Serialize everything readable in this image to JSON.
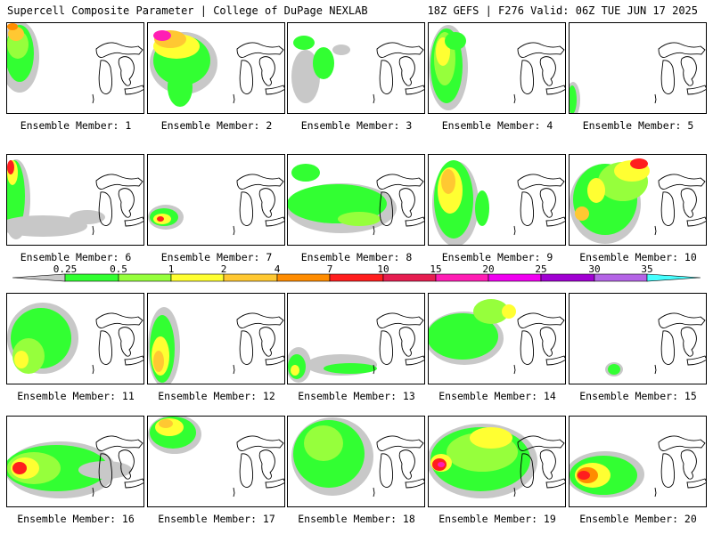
{
  "header": {
    "title": "Supercell Composite Parameter | College of DuPage NEXLAB",
    "run_info": "18Z GEFS | F276 Valid: 06Z TUE JUN 17 2025"
  },
  "member_label_prefix": "Ensemble Member: ",
  "members": [
    {
      "label": "Ensemble Member: 1",
      "number": 1
    },
    {
      "label": "Ensemble Member: 2",
      "number": 2
    },
    {
      "label": "Ensemble Member: 3",
      "number": 3
    },
    {
      "label": "Ensemble Member: 4",
      "number": 4
    },
    {
      "label": "Ensemble Member: 5",
      "number": 5
    },
    {
      "label": "Ensemble Member: 6",
      "number": 6
    },
    {
      "label": "Ensemble Member: 7",
      "number": 7
    },
    {
      "label": "Ensemble Member: 8",
      "number": 8
    },
    {
      "label": "Ensemble Member: 9",
      "number": 9
    },
    {
      "label": "Ensemble Member: 10",
      "number": 10
    },
    {
      "label": "Ensemble Member: 11",
      "number": 11
    },
    {
      "label": "Ensemble Member: 12",
      "number": 12
    },
    {
      "label": "Ensemble Member: 13",
      "number": 13
    },
    {
      "label": "Ensemble Member: 14",
      "number": 14
    },
    {
      "label": "Ensemble Member: 15",
      "number": 15
    },
    {
      "label": "Ensemble Member: 16",
      "number": 16
    },
    {
      "label": "Ensemble Member: 17",
      "number": 17
    },
    {
      "label": "Ensemble Member: 18",
      "number": 18
    },
    {
      "label": "Ensemble Member: 19",
      "number": 19
    },
    {
      "label": "Ensemble Member: 20",
      "number": 20
    }
  ],
  "colorbar": {
    "levels": [
      "0.25",
      "0.5",
      "1",
      "2",
      "4",
      "7",
      "10",
      "15",
      "20",
      "25",
      "30",
      "35"
    ],
    "colors": [
      "#c8c8c8",
      "#32ff32",
      "#96ff3c",
      "#ffff32",
      "#ffc832",
      "#ff8c00",
      "#ff1e1e",
      "#e61e50",
      "#ff1eb4",
      "#f000f0",
      "#a000d2",
      "#b464e6",
      "#46ffff"
    ]
  }
}
